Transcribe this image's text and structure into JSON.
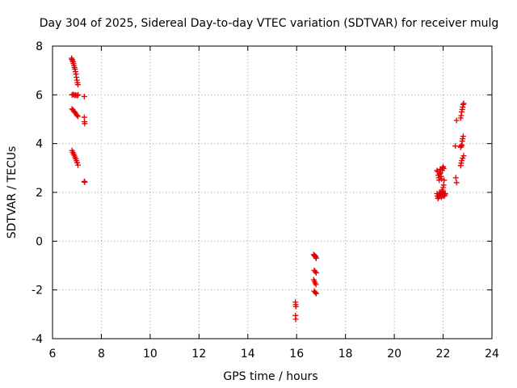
{
  "chart_data": {
    "type": "scatter",
    "title": "Day 304 of 2025, Sidereal Day-to-day VTEC variation (SDTVAR) for receiver mulg",
    "xlabel": "GPS time / hours",
    "ylabel": "SDTVAR / TECUs",
    "xlim": [
      6,
      24
    ],
    "ylim": [
      -4,
      8
    ],
    "xticks": [
      6,
      8,
      10,
      12,
      14,
      16,
      18,
      20,
      22,
      24
    ],
    "yticks": [
      -4,
      -2,
      0,
      2,
      4,
      6,
      8
    ],
    "xtick_labels": [
      "6",
      "8",
      "10",
      "12",
      "14",
      "16",
      "18",
      "20",
      "22",
      "24"
    ],
    "ytick_labels": [
      "-4",
      "-2",
      "0",
      "2",
      "4",
      "6",
      "8"
    ],
    "grid": true,
    "marker": "+",
    "color": "#e00000",
    "series": [
      {
        "name": "SDTVAR",
        "points": [
          [
            6.78,
            7.5
          ],
          [
            6.8,
            7.45
          ],
          [
            6.82,
            7.4
          ],
          [
            6.84,
            7.35
          ],
          [
            6.86,
            7.28
          ],
          [
            6.88,
            7.2
          ],
          [
            6.9,
            7.12
          ],
          [
            6.92,
            7.05
          ],
          [
            6.94,
            6.95
          ],
          [
            6.96,
            6.85
          ],
          [
            6.98,
            6.72
          ],
          [
            7.0,
            6.6
          ],
          [
            7.02,
            6.5
          ],
          [
            7.04,
            6.42
          ],
          [
            6.8,
            6.0
          ],
          [
            6.85,
            6.02
          ],
          [
            6.9,
            5.98
          ],
          [
            6.95,
            6.0
          ],
          [
            7.0,
            5.97
          ],
          [
            7.05,
            6.0
          ],
          [
            7.3,
            5.93
          ],
          [
            6.8,
            5.42
          ],
          [
            6.84,
            5.38
          ],
          [
            6.88,
            5.32
          ],
          [
            6.92,
            5.28
          ],
          [
            6.96,
            5.22
          ],
          [
            7.0,
            5.16
          ],
          [
            7.04,
            5.12
          ],
          [
            7.3,
            5.08
          ],
          [
            7.31,
            4.9
          ],
          [
            7.32,
            4.82
          ],
          [
            6.8,
            3.72
          ],
          [
            6.83,
            3.65
          ],
          [
            6.86,
            3.58
          ],
          [
            6.89,
            3.52
          ],
          [
            6.92,
            3.45
          ],
          [
            6.95,
            3.38
          ],
          [
            6.98,
            3.3
          ],
          [
            7.01,
            3.22
          ],
          [
            7.04,
            3.12
          ],
          [
            7.3,
            2.45
          ],
          [
            7.32,
            2.42
          ],
          [
            15.95,
            -2.5
          ],
          [
            15.96,
            -2.6
          ],
          [
            15.97,
            -2.68
          ],
          [
            15.95,
            -3.05
          ],
          [
            15.96,
            -3.2
          ],
          [
            16.7,
            -0.55
          ],
          [
            16.72,
            -0.58
          ],
          [
            16.74,
            -0.6
          ],
          [
            16.76,
            -0.62
          ],
          [
            16.78,
            -0.65
          ],
          [
            16.8,
            -0.7
          ],
          [
            16.72,
            -1.2
          ],
          [
            16.76,
            -1.25
          ],
          [
            16.8,
            -1.3
          ],
          [
            16.7,
            -1.58
          ],
          [
            16.73,
            -1.65
          ],
          [
            16.76,
            -1.72
          ],
          [
            16.79,
            -1.78
          ],
          [
            16.72,
            -2.05
          ],
          [
            16.76,
            -2.1
          ],
          [
            16.8,
            -2.15
          ],
          [
            21.75,
            2.9
          ],
          [
            21.78,
            2.85
          ],
          [
            21.8,
            2.7
          ],
          [
            21.82,
            2.6
          ],
          [
            21.84,
            2.5
          ],
          [
            21.86,
            2.75
          ],
          [
            21.88,
            2.95
          ],
          [
            21.9,
            2.8
          ],
          [
            21.92,
            2.65
          ],
          [
            21.94,
            2.55
          ],
          [
            21.96,
            2.9
          ],
          [
            21.98,
            3.0
          ],
          [
            22.0,
            3.05
          ],
          [
            22.02,
            2.98
          ],
          [
            22.04,
            2.5
          ],
          [
            22.02,
            2.3
          ],
          [
            22.0,
            2.2
          ],
          [
            21.98,
            2.1
          ],
          [
            21.75,
            1.95
          ],
          [
            21.77,
            1.85
          ],
          [
            21.79,
            1.75
          ],
          [
            21.81,
            1.8
          ],
          [
            21.83,
            1.9
          ],
          [
            21.85,
            2.0
          ],
          [
            21.87,
            1.85
          ],
          [
            21.89,
            1.95
          ],
          [
            21.91,
            1.9
          ],
          [
            21.93,
            1.8
          ],
          [
            21.95,
            2.05
          ],
          [
            21.97,
            1.95
          ],
          [
            21.99,
            1.85
          ],
          [
            22.01,
            1.9
          ],
          [
            22.03,
            1.95
          ],
          [
            22.05,
            1.85
          ],
          [
            22.07,
            1.9
          ],
          [
            22.09,
            1.95
          ],
          [
            22.55,
            4.95
          ],
          [
            22.5,
            3.9
          ],
          [
            22.52,
            2.6
          ],
          [
            22.55,
            2.4
          ],
          [
            22.72,
            5.05
          ],
          [
            22.74,
            5.15
          ],
          [
            22.76,
            5.3
          ],
          [
            22.78,
            5.4
          ],
          [
            22.8,
            5.5
          ],
          [
            22.82,
            5.6
          ],
          [
            22.84,
            5.65
          ],
          [
            22.72,
            3.85
          ],
          [
            22.74,
            3.9
          ],
          [
            22.76,
            3.95
          ],
          [
            22.78,
            4.1
          ],
          [
            22.8,
            4.2
          ],
          [
            22.82,
            4.3
          ],
          [
            22.72,
            3.1
          ],
          [
            22.74,
            3.2
          ],
          [
            22.76,
            3.3
          ],
          [
            22.8,
            3.4
          ],
          [
            22.84,
            3.5
          ]
        ]
      }
    ]
  }
}
